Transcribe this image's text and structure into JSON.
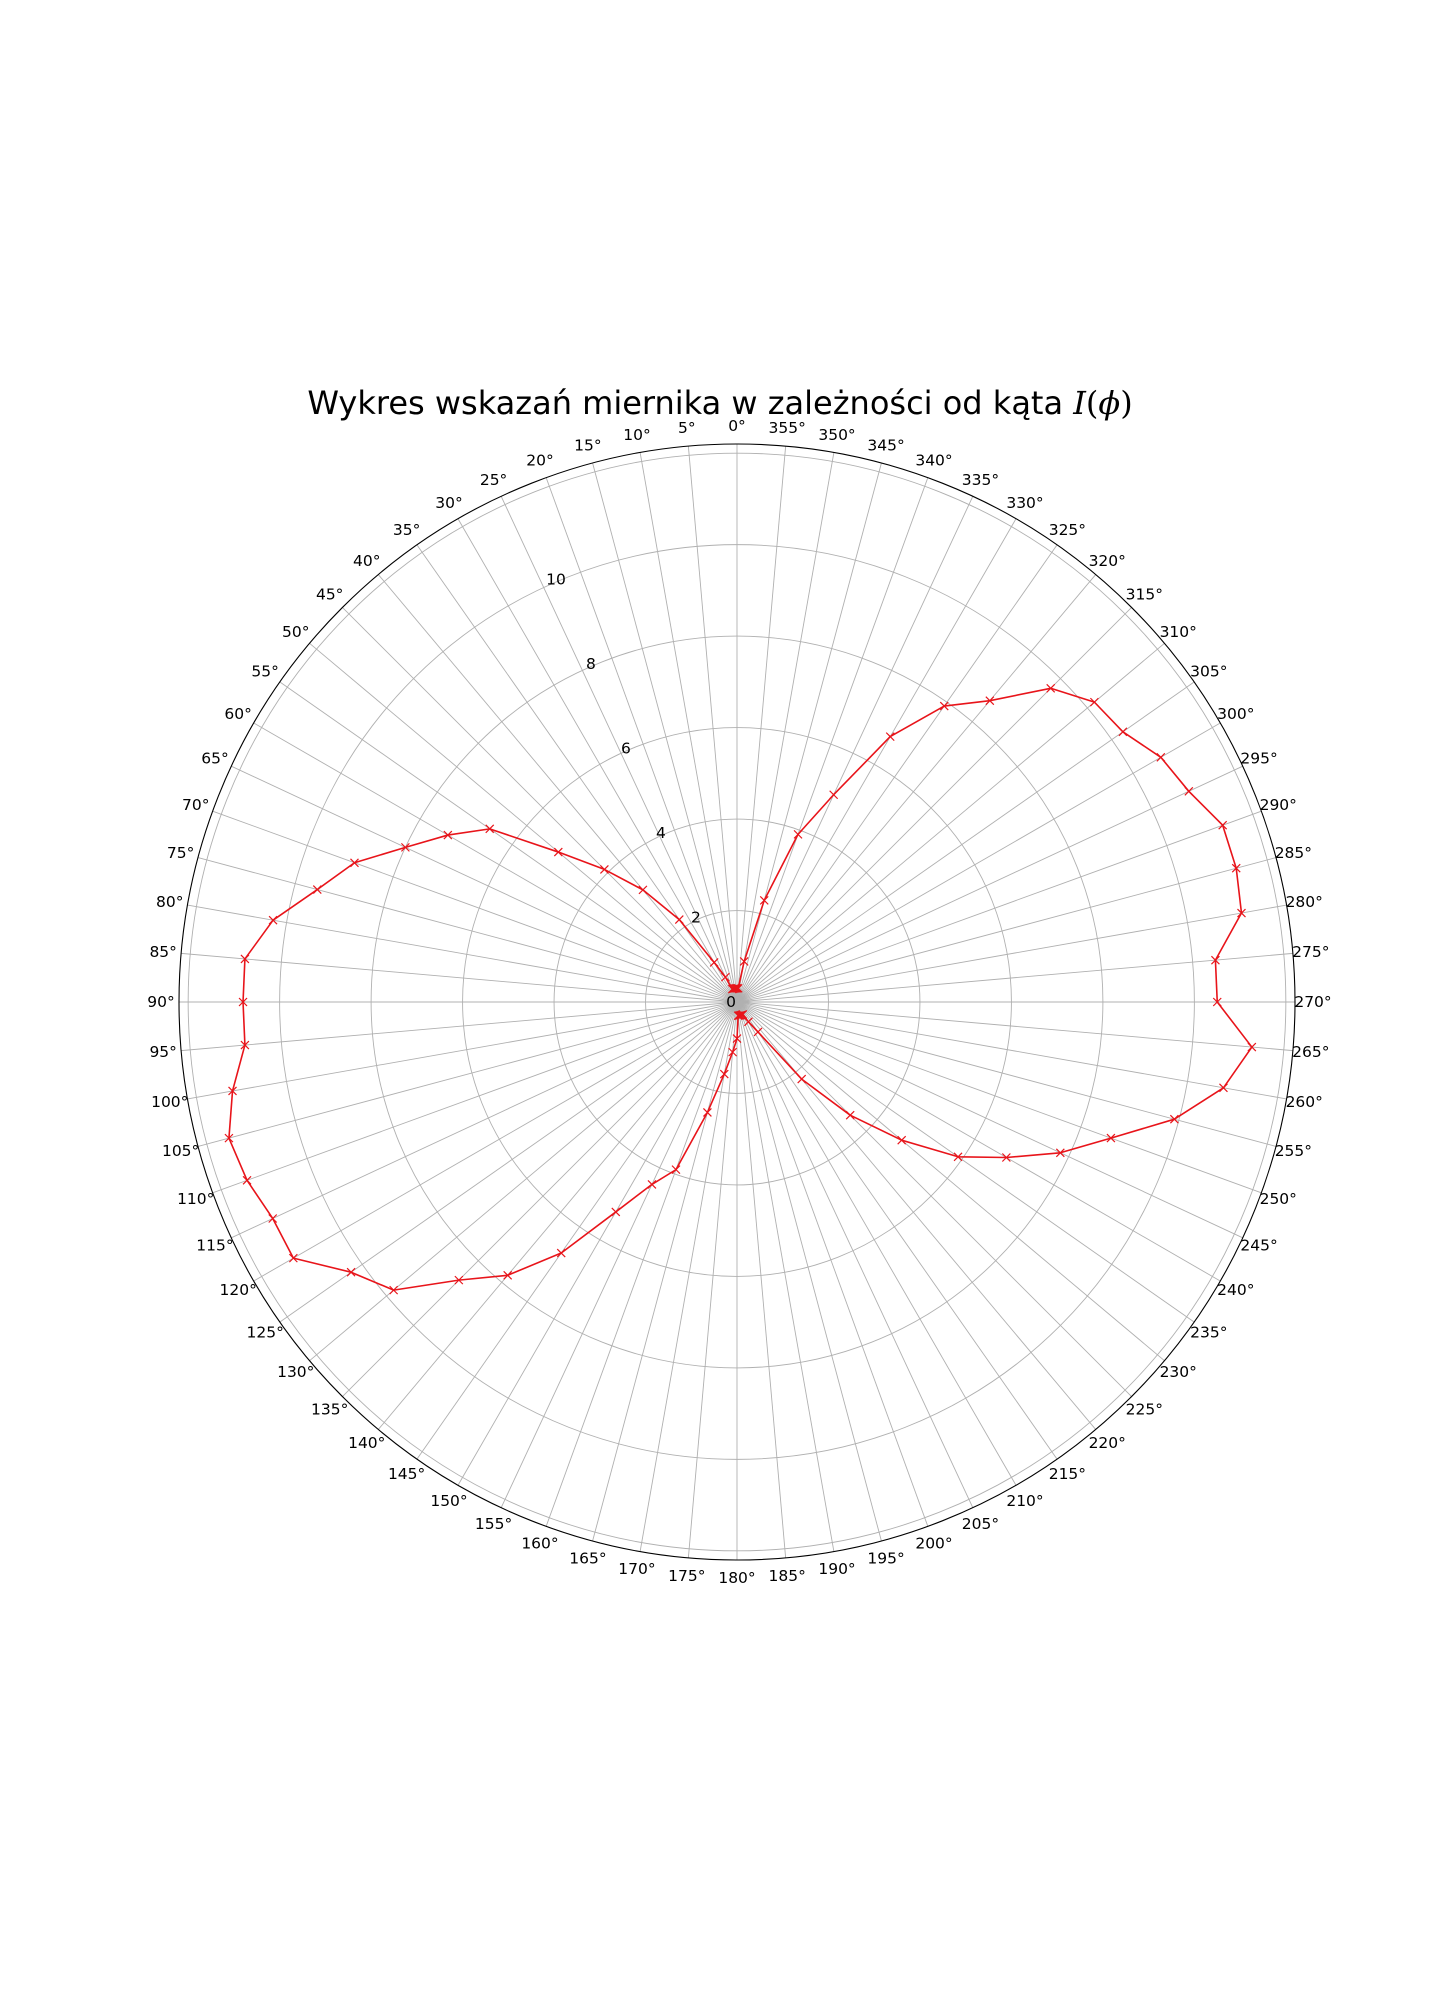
{
  "chart_data": {
    "type": "line",
    "subtype": "polar",
    "title": {
      "text": "Wykres wskazań miernika w zależności od kąta",
      "math_symbol": "I",
      "math_arg": "ϕ"
    },
    "theta_zero_location": "top",
    "theta_direction": "counterclockwise",
    "theta_ticks": [
      "0°",
      "5°",
      "10°",
      "15°",
      "20°",
      "25°",
      "30°",
      "35°",
      "40°",
      "45°",
      "50°",
      "55°",
      "60°",
      "65°",
      "70°",
      "75°",
      "80°",
      "85°",
      "90°",
      "95°",
      "100°",
      "105°",
      "110°",
      "115°",
      "120°",
      "125°",
      "130°",
      "135°",
      "140°",
      "145°",
      "150°",
      "155°",
      "160°",
      "165°",
      "170°",
      "175°",
      "180°",
      "185°",
      "190°",
      "195°",
      "200°",
      "205°",
      "210°",
      "215°",
      "220°",
      "225°",
      "230°",
      "235°",
      "240°",
      "245°",
      "250°",
      "255°",
      "260°",
      "265°",
      "270°",
      "275°",
      "280°",
      "285°",
      "290°",
      "295°",
      "300°",
      "305°",
      "310°",
      "315°",
      "320°",
      "325°",
      "330°",
      "335°",
      "340°",
      "345°",
      "350°",
      "355°"
    ],
    "r_ticks": [
      "0",
      "2",
      "4",
      "6",
      "8",
      "10"
    ],
    "r_tick_values": [
      0,
      2,
      4,
      6,
      8,
      10
    ],
    "r_gridlines": [
      0,
      2,
      4,
      6,
      8,
      10,
      12
    ],
    "r_max": 12.2,
    "grid": true,
    "series": [
      {
        "color": "#e8141a",
        "marker": "x",
        "theta_deg": [
          0,
          5,
          10,
          15,
          20,
          25,
          30,
          35,
          40,
          45,
          50,
          55,
          60,
          65,
          70,
          75,
          80,
          85,
          90,
          95,
          100,
          105,
          110,
          115,
          120,
          125,
          130,
          135,
          140,
          145,
          150,
          155,
          160,
          165,
          170,
          175,
          180,
          185,
          190,
          195,
          200,
          205,
          210,
          215,
          220,
          225,
          230,
          235,
          240,
          245,
          250,
          255,
          260,
          265,
          270,
          275,
          280,
          285,
          290,
          295,
          300,
          305,
          310,
          315,
          320,
          325,
          330,
          335,
          340,
          345,
          350,
          355
        ],
        "r": [
          0.3,
          0.3,
          0.3,
          0.3,
          0.3,
          0.6,
          1.0,
          2.2,
          3.2,
          4.1,
          5.1,
          6.6,
          7.3,
          8.0,
          8.9,
          9.5,
          10.3,
          10.8,
          10.8,
          10.8,
          11.2,
          11.5,
          11.4,
          11.2,
          11.2,
          10.3,
          9.8,
          8.6,
          7.8,
          6.7,
          5.3,
          4.4,
          3.9,
          2.5,
          1.6,
          1.1,
          0.8,
          0.3,
          0.3,
          0.3,
          0.3,
          0.3,
          0.5,
          0.8,
          2.2,
          3.5,
          4.7,
          5.9,
          6.8,
          7.8,
          8.7,
          9.9,
          10.8,
          11.3,
          10.5,
          10.5,
          11.2,
          11.3,
          11.3,
          10.9,
          10.7,
          10.3,
          10.2,
          9.7,
          8.6,
          7.9,
          6.7,
          5.0,
          3.9,
          2.3,
          0.9,
          0.3
        ]
      }
    ]
  }
}
